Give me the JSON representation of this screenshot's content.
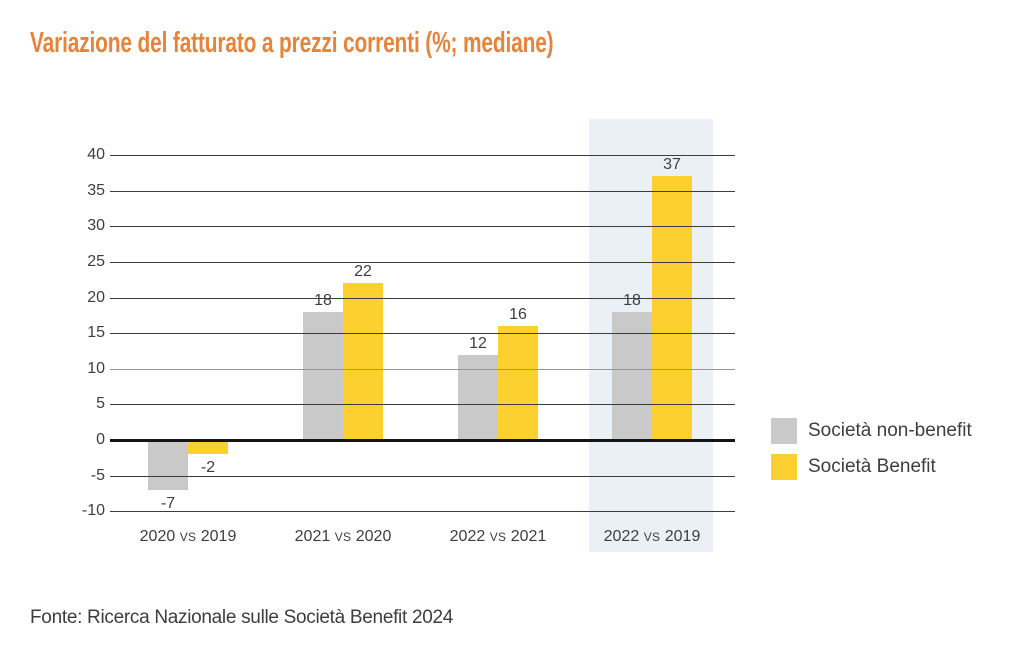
{
  "title": "Variazione del fatturato a prezzi correnti (%; mediane)",
  "source_note": "Fonte: Ricerca Nazionale sulle Società Benefit 2024",
  "colors": {
    "title": "#E8833A",
    "text": "#3E3E3E",
    "gridline": "#3A3D3E",
    "gridline_light": "#979797",
    "zero_line": "#141414",
    "highlight_band": "#EBF0F6",
    "background": "#FFFFFF"
  },
  "chart_data": {
    "type": "bar",
    "title": "Variazione del fatturato a prezzi correnti (%; mediane)",
    "categories": [
      "2020 vs 2019",
      "2021 vs 2020",
      "2022 vs 2021",
      "2022 vs 2019"
    ],
    "series": [
      {
        "name": "Società non-benefit",
        "color": "#C9C9C9",
        "values": [
          -7,
          18,
          12,
          18
        ]
      },
      {
        "name": "Società Benefit",
        "color": "#FCD02F",
        "values": [
          -2,
          22,
          16,
          37
        ]
      }
    ],
    "xlabel": "",
    "ylabel": "",
    "yticks": [
      40,
      35,
      30,
      25,
      20,
      15,
      10,
      5,
      0,
      -5,
      -10
    ],
    "ylim": [
      -10,
      44
    ],
    "grid": true,
    "light_gridlines": [
      10
    ],
    "legend_position": "right",
    "highlight_index": 3,
    "value_labels": true
  }
}
